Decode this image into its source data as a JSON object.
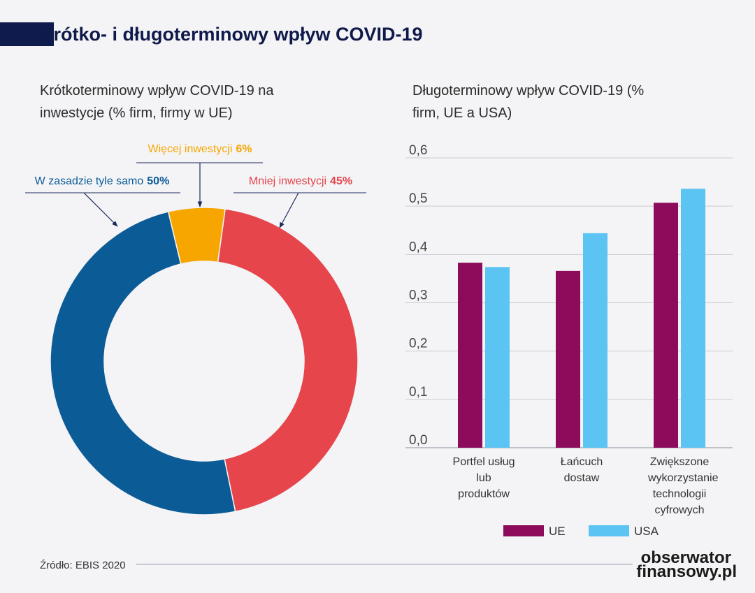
{
  "header": {
    "title": "Krótko- i długoterminowy wpływ COVID-19"
  },
  "chart_data": [
    {
      "type": "pie",
      "title": "Krótkoterminowy wpływ COVID-19 na inwestycje (% firm, firmy w UE)",
      "categories": [
        "Więcej inwestycji",
        "Mniej inwestycji",
        "W zasadzie tyle samo"
      ],
      "values": [
        6,
        45,
        50
      ],
      "value_labels": [
        "6%",
        "45%",
        "50%"
      ],
      "colors": [
        "#f7a600",
        "#e5454b",
        "#0b5b97"
      ]
    },
    {
      "type": "bar",
      "title": "Długoterminowy wpływ COVID-19 (% firm, UE a USA)",
      "categories": [
        "Portfel usług lub produktów",
        "Łańcuch dostaw",
        "Zwiększone wykorzystanie technologii cyfrowych"
      ],
      "series": [
        {
          "name": "UE",
          "color": "#8c0b5b",
          "values": [
            0.383,
            0.366,
            0.507
          ]
        },
        {
          "name": "USA",
          "color": "#5cc4f2",
          "values": [
            0.374,
            0.444,
            0.536
          ]
        }
      ],
      "ylim": [
        0,
        0.6
      ],
      "yticks": [
        {
          "value": 0,
          "label": "0,0"
        },
        {
          "value": 0.1,
          "label": "0,1"
        },
        {
          "value": 0.2,
          "label": "0,2"
        },
        {
          "value": 0.3,
          "label": "0,3"
        },
        {
          "value": 0.4,
          "label": "0,4"
        },
        {
          "value": 0.5,
          "label": "0,5"
        },
        {
          "value": 0.6,
          "label": "0,6"
        }
      ],
      "grid": true,
      "legend": "bottom"
    }
  ],
  "footer": {
    "source": "Źródło: EBIS 2020",
    "logo": [
      "obserwator",
      "finansowy.pl"
    ]
  }
}
